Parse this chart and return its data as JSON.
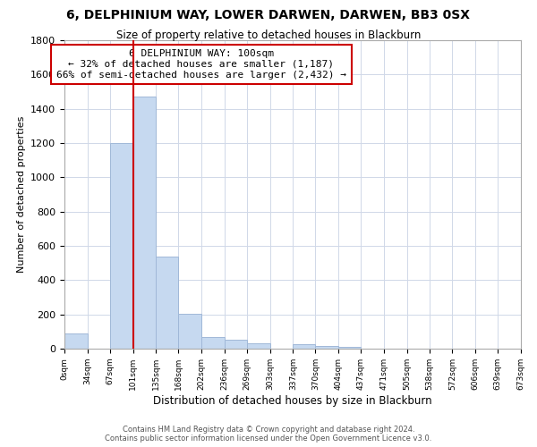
{
  "title": "6, DELPHINIUM WAY, LOWER DARWEN, DARWEN, BB3 0SX",
  "subtitle": "Size of property relative to detached houses in Blackburn",
  "xlabel": "Distribution of detached houses by size in Blackburn",
  "ylabel": "Number of detached properties",
  "bin_edges": [
    0,
    34,
    67,
    101,
    135,
    168,
    202,
    236,
    269,
    303,
    337,
    370,
    404,
    437,
    471,
    505,
    538,
    572,
    606,
    639,
    673
  ],
  "bar_heights": [
    90,
    0,
    1200,
    1470,
    540,
    205,
    70,
    50,
    30,
    0,
    25,
    15,
    10,
    0,
    0,
    0,
    0,
    0,
    0,
    0
  ],
  "bar_color": "#c6d9f0",
  "bar_edgecolor": "#a0b8d8",
  "vline_x": 101,
  "vline_color": "#cc0000",
  "ylim": [
    0,
    1800
  ],
  "yticks": [
    0,
    200,
    400,
    600,
    800,
    1000,
    1200,
    1400,
    1600,
    1800
  ],
  "annotation_title": "6 DELPHINIUM WAY: 100sqm",
  "annotation_line1": "← 32% of detached houses are smaller (1,187)",
  "annotation_line2": "66% of semi-detached houses are larger (2,432) →",
  "annotation_box_color": "#ffffff",
  "annotation_box_edgecolor": "#cc0000",
  "footer_line1": "Contains HM Land Registry data © Crown copyright and database right 2024.",
  "footer_line2": "Contains public sector information licensed under the Open Government Licence v3.0.",
  "background_color": "#ffffff",
  "grid_color": "#d0d8e8"
}
